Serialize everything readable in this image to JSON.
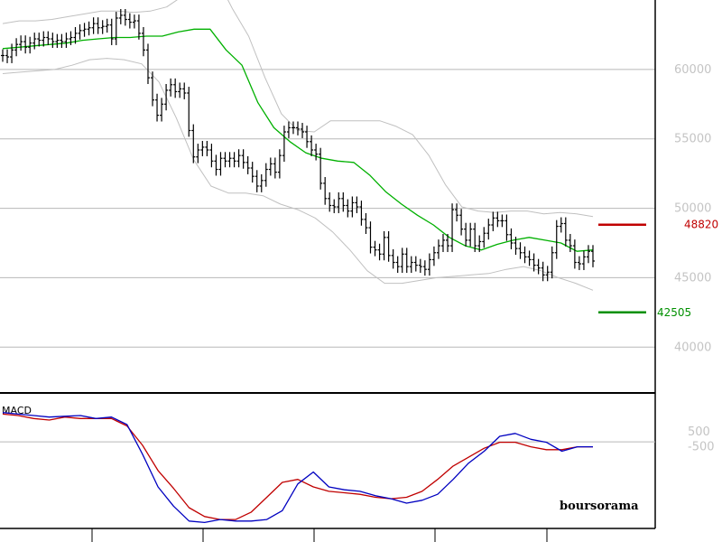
{
  "chart_data": [
    {
      "type": "ohlc",
      "title": "",
      "yticks": [
        {
          "value": 40000,
          "label": "40000"
        },
        {
          "value": 45000,
          "label": "45000"
        },
        {
          "value": 50000,
          "label": "50000"
        },
        {
          "value": 55000,
          "label": "55000"
        },
        {
          "value": 60000,
          "label": "60000"
        }
      ],
      "ylim": [
        36700,
        65000
      ],
      "grid": true,
      "levels": [
        {
          "name": "resistance",
          "value": 48820,
          "label": "48820",
          "color": "#c00000"
        },
        {
          "name": "support",
          "value": 42505,
          "label": "42505",
          "color": "#009000"
        }
      ],
      "series": [
        {
          "name": "price",
          "color": "#000000",
          "values": [
            61000,
            60900,
            61400,
            61800,
            62000,
            61600,
            61900,
            62200,
            62100,
            62300,
            62200,
            62000,
            62100,
            62000,
            62200,
            62300,
            62600,
            62800,
            62900,
            63000,
            63300,
            63000,
            63100,
            63200,
            62200,
            63700,
            63900,
            63600,
            63400,
            63500,
            62600,
            61400,
            59400,
            57800,
            56700,
            57500,
            58500,
            58900,
            58400,
            58600,
            58300,
            55600,
            53700,
            54200,
            54400,
            54200,
            53400,
            52800,
            53600,
            53400,
            53600,
            53400,
            53800,
            53300,
            52900,
            52300,
            51600,
            52000,
            52800,
            53200,
            52600,
            53800,
            55500,
            55800,
            55800,
            55700,
            55500,
            54800,
            54200,
            53900,
            51800,
            50700,
            50200,
            50100,
            50700,
            50200,
            49800,
            50400,
            50100,
            49200,
            48600,
            47200,
            47000,
            46700,
            47900,
            46600,
            46100,
            45800,
            46700,
            45800,
            46100,
            45900,
            45800,
            45600,
            46300,
            46800,
            47300,
            47700,
            47300,
            49900,
            49500,
            48500,
            47700,
            48500,
            47300,
            47600,
            48200,
            48800,
            49300,
            49100,
            49100,
            48100,
            47500,
            47100,
            46800,
            46500,
            46300,
            45900,
            45700,
            45200,
            45400,
            46800,
            48700,
            48900,
            47700,
            47300,
            46100,
            46000,
            46500,
            46900,
            46200
          ]
        },
        {
          "name": "moving-average",
          "color": "#00b000",
          "values": [
            61500,
            61600,
            61700,
            61800,
            61900,
            62100,
            62200,
            62300,
            62300,
            62400,
            62400,
            62700,
            62900,
            62900,
            61400,
            60300,
            57600,
            55800,
            54800,
            54000,
            53600,
            53400,
            53300,
            52400,
            51200,
            50300,
            49500,
            48800,
            47900,
            47300,
            47000,
            47400,
            47700,
            47900,
            47700,
            47500,
            46900,
            47000
          ]
        },
        {
          "name": "bollinger-upper",
          "color": "#c0c0c0",
          "values": [
            63300,
            63500,
            63500,
            63600,
            63800,
            64000,
            64200,
            64200,
            64100,
            64200,
            64500,
            65300,
            65900,
            66700,
            64400,
            62400,
            59400,
            56800,
            55600,
            55500,
            56300,
            56300,
            56300,
            56300,
            55900,
            55300,
            53800,
            51700,
            50100,
            49800,
            49700,
            49800,
            49800,
            49600,
            49700,
            49600,
            49400
          ]
        },
        {
          "name": "bollinger-lower",
          "color": "#c0c0c0",
          "values": [
            59700,
            59800,
            59900,
            60000,
            60300,
            60700,
            60800,
            60700,
            60400,
            59100,
            56500,
            53500,
            51600,
            51100,
            51100,
            50900,
            50300,
            49900,
            49300,
            48300,
            47000,
            45500,
            44600,
            44600,
            44800,
            45000,
            45100,
            45200,
            45300,
            45600,
            45800,
            45500,
            45000,
            44600,
            44100
          ]
        }
      ]
    },
    {
      "type": "line",
      "title": "MACD",
      "yticks": [
        {
          "value": 500,
          "label": "500"
        },
        {
          "value": -500,
          "label": "-500"
        }
      ],
      "ylim": [
        -6000,
        3000
      ],
      "series": [
        {
          "name": "macd-line",
          "color": "#0000c0",
          "values": [
            1800,
            1700,
            1600,
            1500,
            1550,
            1600,
            1400,
            1500,
            1000,
            -1000,
            -3200,
            -4500,
            -5500,
            -5600,
            -5400,
            -5500,
            -5500,
            -5400,
            -4800,
            -3000,
            -2200,
            -3200,
            -3400,
            -3500,
            -3800,
            -4000,
            -4300,
            -4100,
            -3700,
            -2700,
            -1600,
            -800,
            200,
            400,
            0,
            -200,
            -800,
            -500,
            -500
          ]
        },
        {
          "name": "signal-line",
          "color": "#c00000",
          "values": [
            1700,
            1600,
            1400,
            1300,
            1500,
            1400,
            1400,
            1400,
            900,
            -400,
            -2100,
            -3300,
            -4600,
            -5200,
            -5400,
            -5400,
            -4900,
            -3900,
            -2900,
            -2700,
            -3200,
            -3500,
            -3600,
            -3700,
            -3900,
            -4000,
            -3900,
            -3500,
            -2700,
            -1800,
            -1200,
            -600,
            -200,
            -200,
            -500,
            -700,
            -700,
            -500,
            -500
          ]
        }
      ]
    }
  ],
  "watermark": {
    "text": "boursorama"
  }
}
